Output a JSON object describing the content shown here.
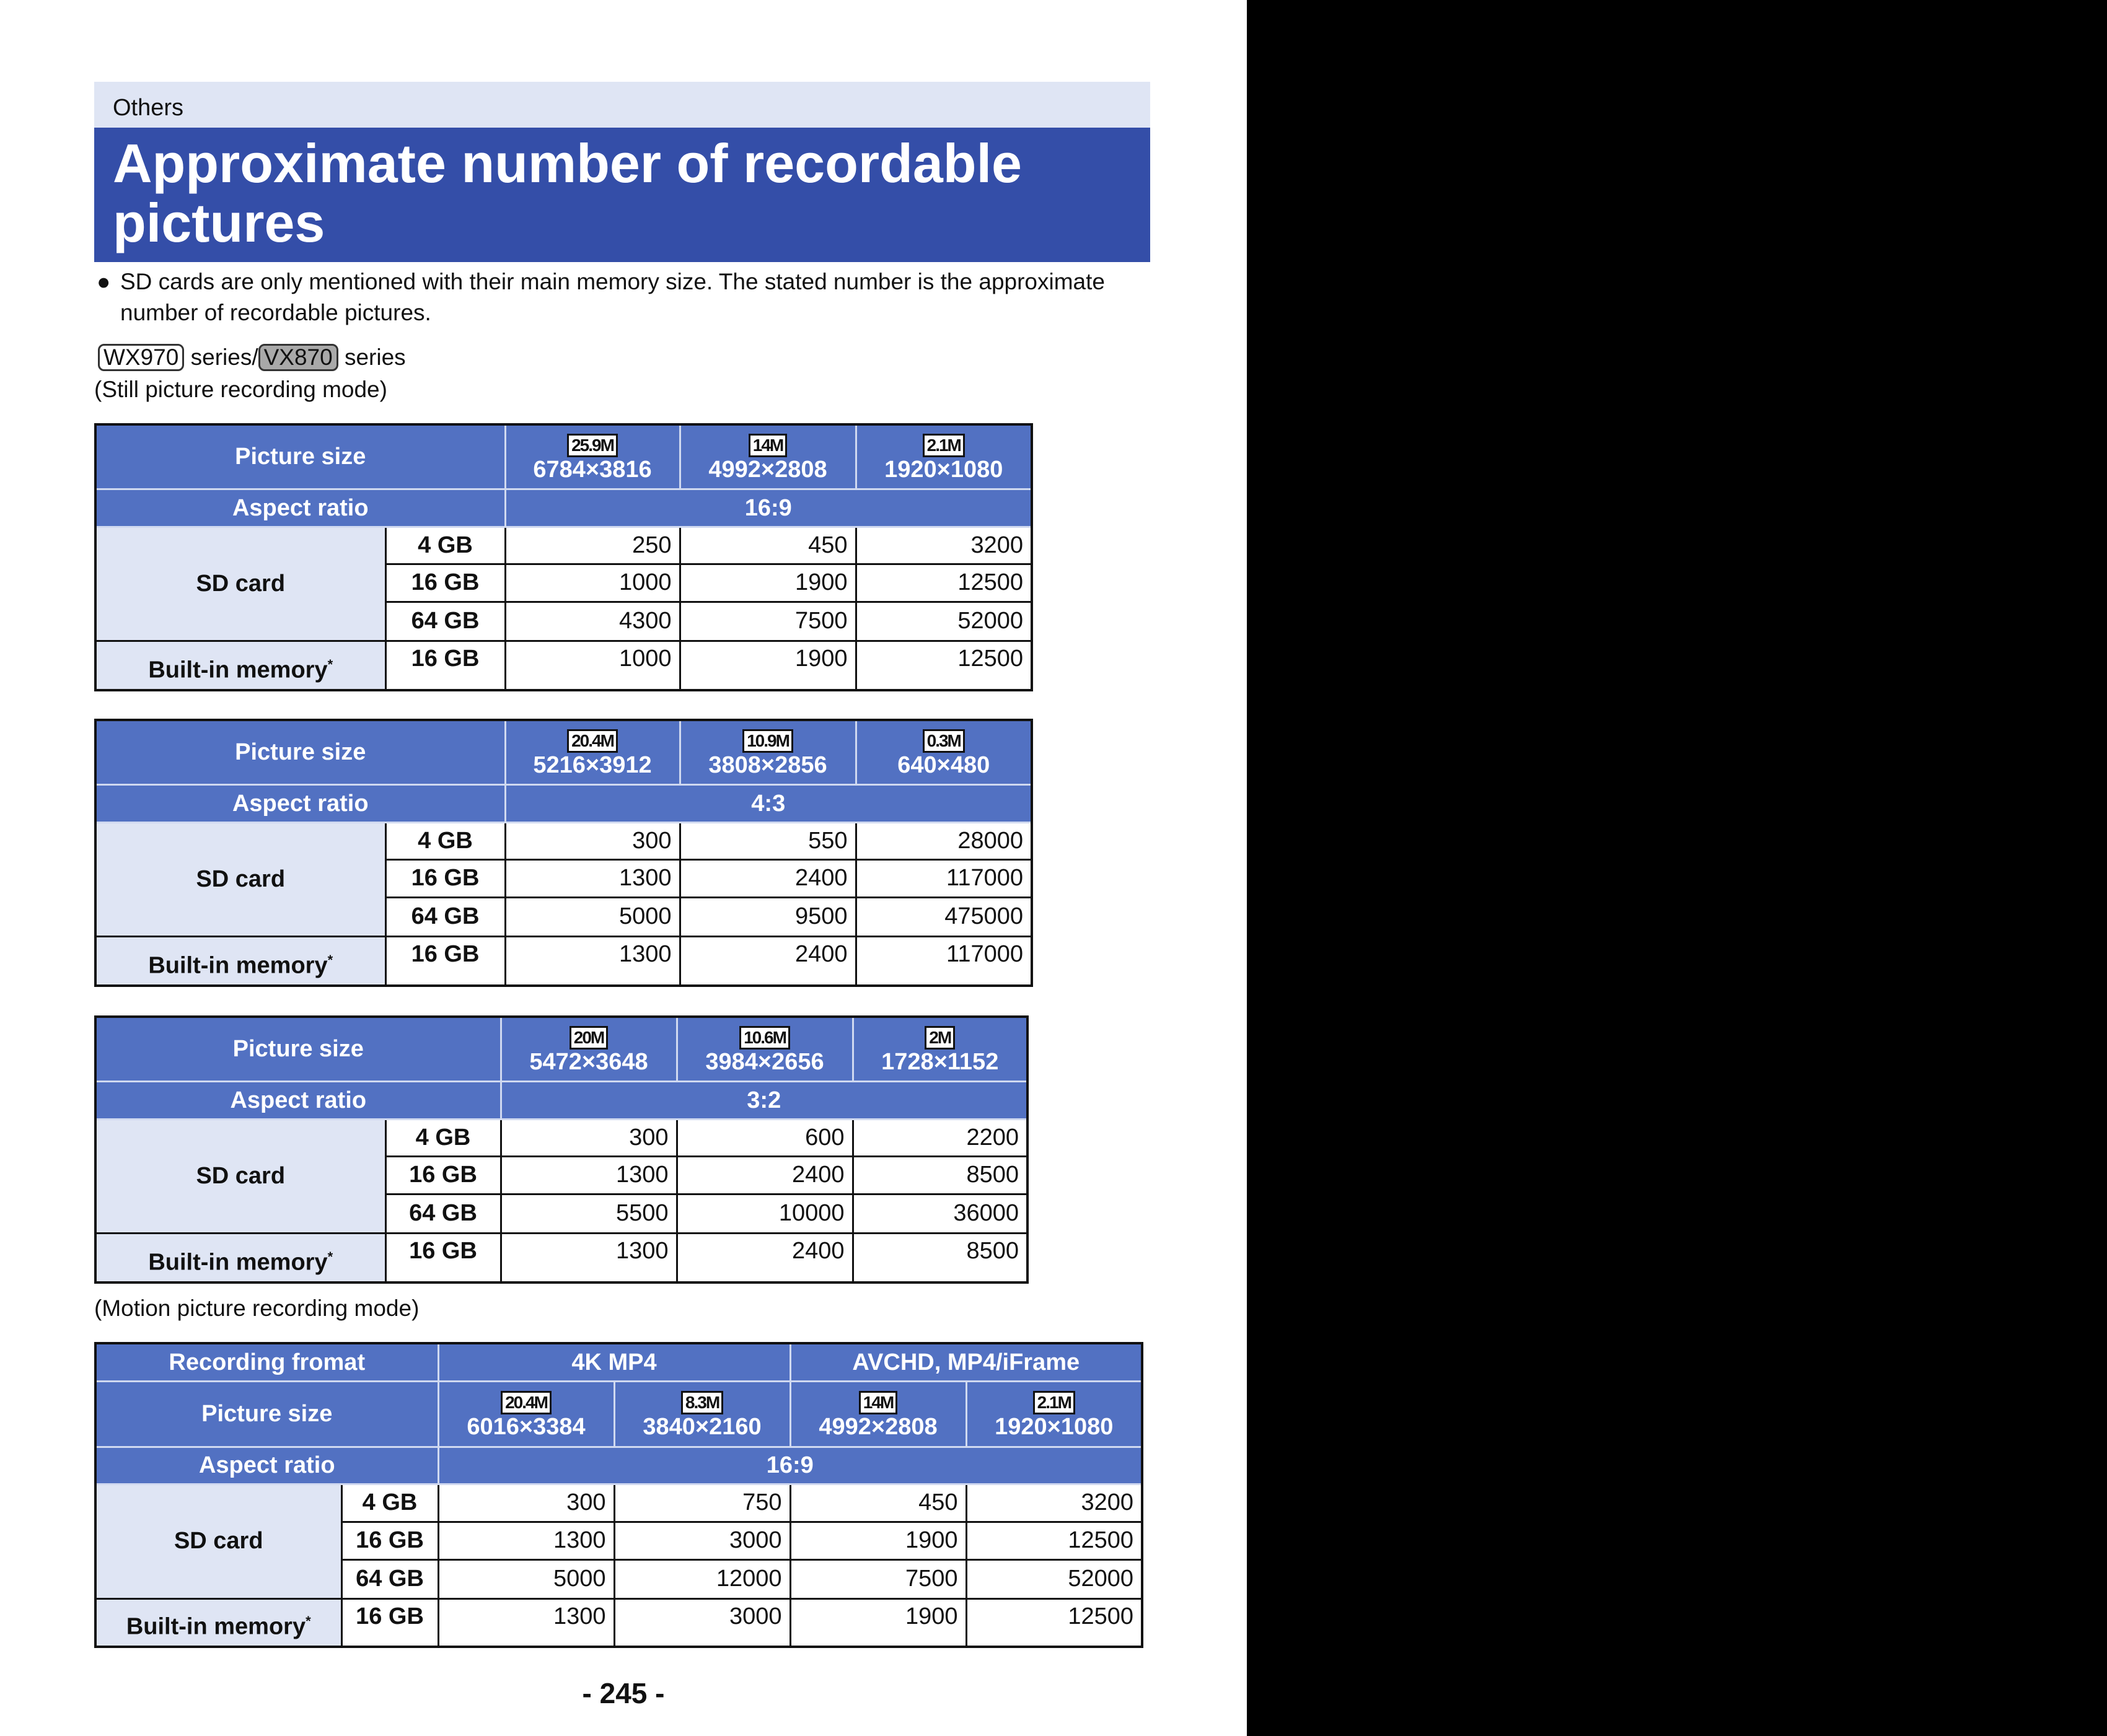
{
  "header": {
    "section": "Others",
    "title": "Approximate number of recordable pictures"
  },
  "note": "SD cards are only mentioned with their main memory size. The stated number is the approximate number of recordable pictures.",
  "series_line": {
    "model1": "WX970",
    "sep": " series/",
    "model2": "VX870",
    "suffix": " series"
  },
  "still_mode_label": "(Still picture recording mode)",
  "motion_mode_label": "(Motion picture recording mode)",
  "still_tables": [
    {
      "picture_size_label": "Picture size",
      "sizes": [
        {
          "badge": "25.9M",
          "dims": "6784×3816"
        },
        {
          "badge": "14M",
          "dims": "4992×2808"
        },
        {
          "badge": "2.1M",
          "dims": "1920×1080"
        }
      ],
      "aspect_label": "Aspect ratio",
      "aspect": "16:9",
      "sd_label": "SD card",
      "builtin_label": "Built-in memory",
      "builtin_mark": "*",
      "rows": [
        {
          "capacity": "4 GB",
          "values": [
            "250",
            "450",
            "3200"
          ]
        },
        {
          "capacity": "16 GB",
          "values": [
            "1000",
            "1900",
            "12500"
          ]
        },
        {
          "capacity": "64 GB",
          "values": [
            "4300",
            "7500",
            "52000"
          ]
        }
      ],
      "builtin": {
        "capacity": "16 GB",
        "values": [
          "1000",
          "1900",
          "12500"
        ]
      }
    },
    {
      "picture_size_label": "Picture size",
      "sizes": [
        {
          "badge": "20.4M",
          "dims": "5216×3912"
        },
        {
          "badge": "10.9M",
          "dims": "3808×2856"
        },
        {
          "badge": "0.3M",
          "dims": "640×480"
        }
      ],
      "aspect_label": "Aspect ratio",
      "aspect": "4:3",
      "sd_label": "SD card",
      "builtin_label": "Built-in memory",
      "builtin_mark": "*",
      "rows": [
        {
          "capacity": "4 GB",
          "values": [
            "300",
            "550",
            "28000"
          ]
        },
        {
          "capacity": "16 GB",
          "values": [
            "1300",
            "2400",
            "117000"
          ]
        },
        {
          "capacity": "64 GB",
          "values": [
            "5000",
            "9500",
            "475000"
          ]
        }
      ],
      "builtin": {
        "capacity": "16 GB",
        "values": [
          "1300",
          "2400",
          "117000"
        ]
      }
    },
    {
      "picture_size_label": "Picture size",
      "sizes": [
        {
          "badge": "20M",
          "dims": "5472×3648"
        },
        {
          "badge": "10.6M",
          "dims": "3984×2656"
        },
        {
          "badge": "2M",
          "dims": "1728×1152"
        }
      ],
      "aspect_label": "Aspect ratio",
      "aspect": "3:2",
      "sd_label": "SD card",
      "builtin_label": "Built-in memory",
      "builtin_mark": "*",
      "rows": [
        {
          "capacity": "4 GB",
          "values": [
            "300",
            "600",
            "2200"
          ]
        },
        {
          "capacity": "16 GB",
          "values": [
            "1300",
            "2400",
            "8500"
          ]
        },
        {
          "capacity": "64 GB",
          "values": [
            "5500",
            "10000",
            "36000"
          ]
        }
      ],
      "builtin": {
        "capacity": "16 GB",
        "values": [
          "1300",
          "2400",
          "8500"
        ]
      }
    }
  ],
  "motion_table": {
    "format_label": "Recording fromat",
    "formats": [
      "4K MP4",
      "AVCHD, MP4/iFrame"
    ],
    "picture_size_label": "Picture size",
    "sizes": [
      {
        "badge": "20.4M",
        "dims": "6016×3384"
      },
      {
        "badge": "8.3M",
        "dims": "3840×2160"
      },
      {
        "badge": "14M",
        "dims": "4992×2808"
      },
      {
        "badge": "2.1M",
        "dims": "1920×1080"
      }
    ],
    "aspect_label": "Aspect ratio",
    "aspect": "16:9",
    "sd_label": "SD card",
    "builtin_label": "Built-in memory",
    "builtin_mark": "*",
    "rows": [
      {
        "capacity": "4 GB",
        "values": [
          "300",
          "750",
          "450",
          "3200"
        ]
      },
      {
        "capacity": "16 GB",
        "values": [
          "1300",
          "3000",
          "1900",
          "12500"
        ]
      },
      {
        "capacity": "64 GB",
        "values": [
          "5000",
          "12000",
          "7500",
          "52000"
        ]
      }
    ],
    "builtin": {
      "capacity": "16 GB",
      "values": [
        "1300",
        "3000",
        "1900",
        "12500"
      ]
    }
  },
  "page_number": "- 245 -"
}
